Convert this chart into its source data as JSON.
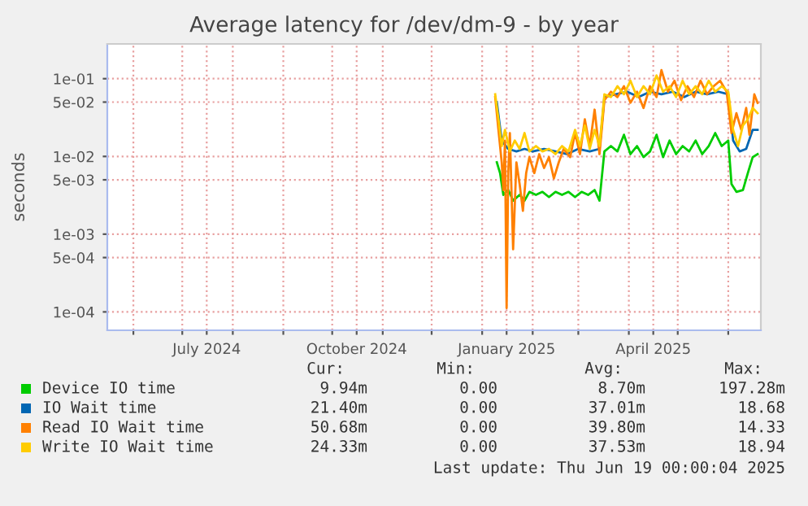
{
  "chart_data": {
    "type": "line",
    "title": "Average latency for /dev/dm-9 - by year",
    "ylabel": "seconds",
    "log": "y",
    "ylim": [
      5.8e-05,
      0.28
    ],
    "yticks": [
      {
        "value": 0.0001,
        "label": "1e-04"
      },
      {
        "value": 0.0005,
        "label": "5e-04"
      },
      {
        "value": 0.001,
        "label": "1e-03"
      },
      {
        "value": 0.005,
        "label": "5e-03"
      },
      {
        "value": 0.01,
        "label": "1e-02"
      },
      {
        "value": 0.05,
        "label": "5e-02"
      },
      {
        "value": 0.1,
        "label": "1e-01"
      }
    ],
    "xlim": [
      "2024-05-16",
      "2025-06-21"
    ],
    "xticks": [
      {
        "value": "2024-06-01",
        "label": null
      },
      {
        "value": "2024-07-01",
        "label": null
      },
      {
        "value": "2024-07-16",
        "label": "July 2024"
      },
      {
        "value": "2024-08-01",
        "label": null
      },
      {
        "value": "2024-09-01",
        "label": null
      },
      {
        "value": "2024-10-01",
        "label": null
      },
      {
        "value": "2024-10-16",
        "label": "October 2024"
      },
      {
        "value": "2024-11-01",
        "label": null
      },
      {
        "value": "2024-12-01",
        "label": null
      },
      {
        "value": "2025-01-01",
        "label": null
      },
      {
        "value": "2025-01-16",
        "label": "January 2025"
      },
      {
        "value": "2025-02-01",
        "label": null
      },
      {
        "value": "2025-03-01",
        "label": null
      },
      {
        "value": "2025-04-01",
        "label": null
      },
      {
        "value": "2025-04-16",
        "label": "April 2025"
      },
      {
        "value": "2025-05-01",
        "label": null
      },
      {
        "value": "2025-06-01",
        "label": null
      }
    ],
    "grid": true,
    "legend": "bottom",
    "series": [
      {
        "name": "Device IO time",
        "color": "#00cc00",
        "x": [
          "2025-01-10",
          "2025-01-12",
          "2025-01-14",
          "2025-01-17",
          "2025-01-20",
          "2025-01-24",
          "2025-01-27",
          "2025-01-30",
          "2025-02-03",
          "2025-02-07",
          "2025-02-11",
          "2025-02-15",
          "2025-02-19",
          "2025-02-23",
          "2025-02-27",
          "2025-03-03",
          "2025-03-07",
          "2025-03-11",
          "2025-03-14",
          "2025-03-17",
          "2025-03-21",
          "2025-03-25",
          "2025-03-29",
          "2025-04-02",
          "2025-04-06",
          "2025-04-10",
          "2025-04-14",
          "2025-04-18",
          "2025-04-22",
          "2025-04-26",
          "2025-04-30",
          "2025-05-04",
          "2025-05-08",
          "2025-05-12",
          "2025-05-16",
          "2025-05-20",
          "2025-05-24",
          "2025-05-28",
          "2025-06-01",
          "2025-06-03",
          "2025-06-06",
          "2025-06-10",
          "2025-06-13",
          "2025-06-16",
          "2025-06-19"
        ],
        "values": [
          0.0084,
          0.0061,
          0.0032,
          0.0037,
          0.0027,
          0.0032,
          0.0027,
          0.0035,
          0.0032,
          0.0035,
          0.003,
          0.0035,
          0.0032,
          0.0035,
          0.003,
          0.0035,
          0.0032,
          0.0037,
          0.0027,
          0.0116,
          0.0136,
          0.0116,
          0.019,
          0.0107,
          0.0136,
          0.0098,
          0.0116,
          0.019,
          0.0098,
          0.016,
          0.0107,
          0.0136,
          0.0116,
          0.016,
          0.0107,
          0.0136,
          0.02,
          0.0136,
          0.016,
          0.0044,
          0.0035,
          0.0037,
          0.0061,
          0.0098,
          0.0107
        ]
      },
      {
        "name": "IO Wait time",
        "color": "#0066b3",
        "x": [
          "2025-01-10",
          "2025-01-13",
          "2025-01-17",
          "2025-01-22",
          "2025-01-27",
          "2025-02-01",
          "2025-02-08",
          "2025-02-15",
          "2025-02-22",
          "2025-03-01",
          "2025-03-08",
          "2025-03-14",
          "2025-03-17",
          "2025-03-24",
          "2025-03-31",
          "2025-04-07",
          "2025-04-14",
          "2025-04-21",
          "2025-04-28",
          "2025-05-05",
          "2025-05-12",
          "2025-05-19",
          "2025-05-26",
          "2025-06-01",
          "2025-06-04",
          "2025-06-08",
          "2025-06-12",
          "2025-06-16",
          "2025-06-19"
        ],
        "values": [
          0.05,
          0.016,
          0.0125,
          0.0116,
          0.0125,
          0.0116,
          0.0125,
          0.0116,
          0.0107,
          0.0125,
          0.0116,
          0.0125,
          0.058,
          0.063,
          0.068,
          0.058,
          0.068,
          0.063,
          0.068,
          0.058,
          0.068,
          0.063,
          0.068,
          0.063,
          0.016,
          0.0116,
          0.0125,
          0.022,
          0.022
        ]
      },
      {
        "name": "Read IO Wait time",
        "color": "#ff8000",
        "x": [
          "2025-01-09",
          "2025-01-11",
          "2025-01-13",
          "2025-01-14",
          "2025-01-15",
          "2025-01-16",
          "2025-01-17",
          "2025-01-18",
          "2025-01-20",
          "2025-01-22",
          "2025-01-24",
          "2025-01-26",
          "2025-01-28",
          "2025-01-30",
          "2025-02-02",
          "2025-02-05",
          "2025-02-08",
          "2025-02-11",
          "2025-02-14",
          "2025-02-17",
          "2025-02-20",
          "2025-02-24",
          "2025-02-27",
          "2025-03-02",
          "2025-03-05",
          "2025-03-08",
          "2025-03-11",
          "2025-03-14",
          "2025-03-17",
          "2025-03-21",
          "2025-03-25",
          "2025-03-29",
          "2025-04-02",
          "2025-04-06",
          "2025-04-10",
          "2025-04-14",
          "2025-04-18",
          "2025-04-21",
          "2025-04-25",
          "2025-04-29",
          "2025-05-03",
          "2025-05-07",
          "2025-05-11",
          "2025-05-15",
          "2025-05-19",
          "2025-05-23",
          "2025-05-27",
          "2025-05-31",
          "2025-06-03",
          "2025-06-06",
          "2025-06-09",
          "2025-06-12",
          "2025-06-14",
          "2025-06-17",
          "2025-06-19"
        ],
        "values": [
          0.058,
          0.022,
          0.0084,
          0.0037,
          0.016,
          0.000112,
          0.0061,
          0.02,
          0.00064,
          0.0084,
          0.0044,
          0.002,
          0.0061,
          0.0098,
          0.0061,
          0.0107,
          0.0071,
          0.0098,
          0.0052,
          0.0084,
          0.0125,
          0.0098,
          0.02,
          0.0107,
          0.03,
          0.0136,
          0.04,
          0.0107,
          0.053,
          0.068,
          0.058,
          0.08,
          0.049,
          0.068,
          0.042,
          0.08,
          0.058,
          0.129,
          0.068,
          0.094,
          0.053,
          0.08,
          0.058,
          0.094,
          0.063,
          0.08,
          0.094,
          0.068,
          0.02,
          0.036,
          0.022,
          0.042,
          0.019,
          0.063,
          0.049
        ]
      },
      {
        "name": "Write IO Wait time",
        "color": "#ffcc00",
        "x": [
          "2025-01-09",
          "2025-01-11",
          "2025-01-13",
          "2025-01-15",
          "2025-01-18",
          "2025-01-21",
          "2025-01-24",
          "2025-01-27",
          "2025-01-30",
          "2025-02-03",
          "2025-02-07",
          "2025-02-11",
          "2025-02-15",
          "2025-02-19",
          "2025-02-23",
          "2025-02-27",
          "2025-03-02",
          "2025-03-05",
          "2025-03-08",
          "2025-03-11",
          "2025-03-14",
          "2025-03-17",
          "2025-03-21",
          "2025-03-25",
          "2025-03-29",
          "2025-04-02",
          "2025-04-06",
          "2025-04-10",
          "2025-04-14",
          "2025-04-18",
          "2025-04-22",
          "2025-04-26",
          "2025-04-30",
          "2025-05-04",
          "2025-05-08",
          "2025-05-12",
          "2025-05-16",
          "2025-05-20",
          "2025-05-24",
          "2025-05-28",
          "2025-06-01",
          "2025-06-04",
          "2025-06-07",
          "2025-06-10",
          "2025-06-13",
          "2025-06-16",
          "2025-06-19"
        ],
        "values": [
          0.063,
          0.03,
          0.0136,
          0.022,
          0.0116,
          0.016,
          0.0125,
          0.02,
          0.0116,
          0.0136,
          0.0116,
          0.0125,
          0.0107,
          0.0136,
          0.0116,
          0.022,
          0.0136,
          0.025,
          0.0125,
          0.022,
          0.0136,
          0.063,
          0.058,
          0.08,
          0.063,
          0.094,
          0.058,
          0.08,
          0.063,
          0.11,
          0.068,
          0.08,
          0.058,
          0.094,
          0.063,
          0.08,
          0.063,
          0.094,
          0.068,
          0.08,
          0.068,
          0.022,
          0.0136,
          0.025,
          0.03,
          0.042,
          0.036
        ]
      }
    ],
    "annotations": [
      "Cur:",
      "Min:",
      "Avg:",
      "Max:",
      "9.94m",
      "0.00",
      "8.70m",
      "197.28m",
      "21.40m",
      "0.00",
      "37.01m",
      "18.68",
      "50.68m",
      "0.00",
      "39.80m",
      "14.33",
      "24.33m",
      "0.00",
      "37.53m",
      "18.94",
      "Last update: Thu Jun 19 00:00:04 2025"
    ]
  }
}
